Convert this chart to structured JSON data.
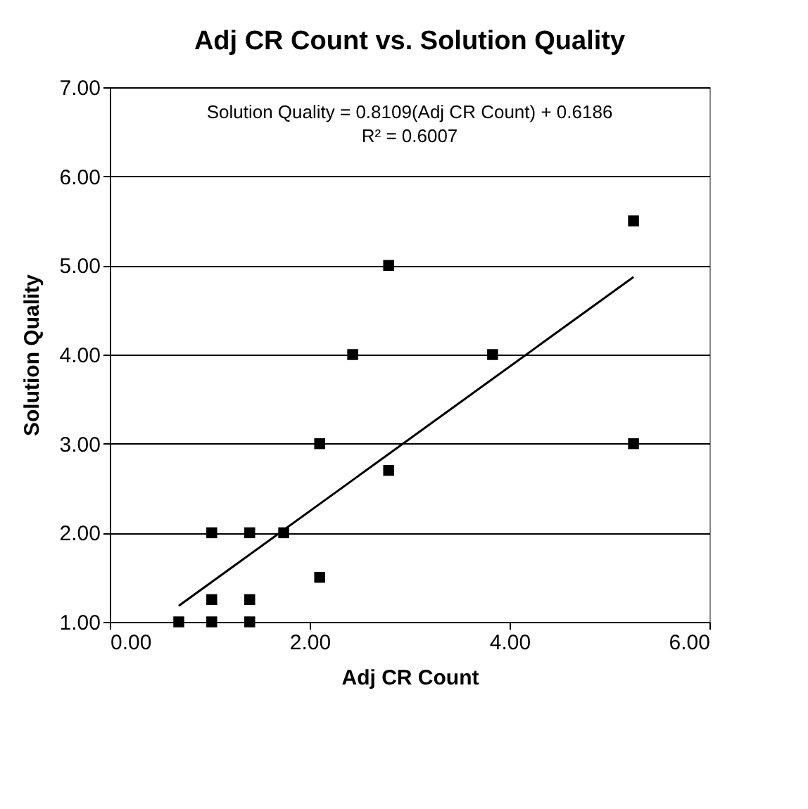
{
  "chart_data": {
    "type": "scatter",
    "title": "Adj CR Count vs. Solution Quality",
    "xlabel": "Adj CR Count",
    "ylabel": "Solution Quality",
    "annotations": [
      "Solution Quality = 0.8109(Adj CR Count) + 0.6186",
      "R² = 0.6007"
    ],
    "xlim": [
      0,
      6
    ],
    "xticks": [
      {
        "value": 0,
        "label": "0.00"
      },
      {
        "value": 2,
        "label": "2.00"
      },
      {
        "value": 4,
        "label": "4.00"
      },
      {
        "value": 6,
        "label": "6.00"
      }
    ],
    "ylim": [
      1,
      7
    ],
    "yticks": [
      {
        "value": 1,
        "label": "1.00"
      },
      {
        "value": 2,
        "label": "2.00"
      },
      {
        "value": 3,
        "label": "3.00"
      },
      {
        "value": 4,
        "label": "4.00"
      },
      {
        "value": 5,
        "label": "5.00"
      },
      {
        "value": 6,
        "label": "6.00"
      },
      {
        "value": 7,
        "label": "7.00"
      }
    ],
    "grid": "y",
    "marker": "square",
    "series": [
      {
        "color": "#000000",
        "x": [
          0.69,
          1.02,
          1.4,
          1.02,
          1.4,
          1.02,
          1.4,
          1.74,
          2.1,
          2.1,
          2.43,
          2.79,
          2.79,
          3.83,
          5.24,
          5.24
        ],
        "values": [
          1,
          1,
          1,
          1.25,
          1.25,
          2,
          2,
          2,
          1.5,
          3,
          4,
          5,
          2.7,
          4,
          5.5,
          3
        ]
      },
      {
        "type": "line",
        "color": "#000000",
        "line_style": "solid",
        "marker": "none",
        "x": [
          0.69,
          5.24
        ],
        "values": [
          1.18,
          4.87
        ]
      }
    ]
  }
}
